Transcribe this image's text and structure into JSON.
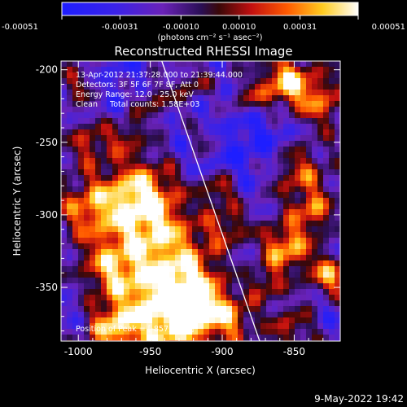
{
  "chart_data": {
    "type": "heatmap",
    "title": "Reconstructed RHESSI Image",
    "xlabel": "Heliocentric X (arcsec)",
    "ylabel": "Heliocentric Y (arcsec)",
    "xlim": [
      -1012,
      -818
    ],
    "ylim": [
      -387,
      -194
    ],
    "x_ticks": [
      -1000,
      -950,
      -900,
      -850
    ],
    "y_ticks": [
      -200,
      -250,
      -300,
      -350
    ],
    "colorbar": {
      "colormap": "blue-purple-red-yellow-white",
      "range": [
        -0.00051,
        0.00051
      ],
      "ticks": [
        "-0.00051",
        "-0.00031",
        "-0.00010",
        "0.00010",
        "0.00031",
        "0.00051"
      ],
      "label": "(photons cm⁻² s⁻¹ asec⁻²)"
    },
    "annotations": [
      "13-Apr-2012 21:37:28.000 to 21:39:44.000",
      "Detectors: 3F 5F 6F 7F 8F, Att 0",
      "Energy Range: 12.0 - 25.0 keV",
      "Clean     Total counts: 1.58E+03"
    ],
    "peak_label": "Position of Peak = [-857, -209]",
    "limb_line": {
      "points": [
        [
          -942,
          -194
        ],
        [
          -874,
          -387
        ]
      ]
    },
    "hot_regions": [
      {
        "x": -941,
        "y": -320,
        "intensity": 0.85,
        "radius": 30
      },
      {
        "x": -938,
        "y": -372,
        "intensity": 0.95,
        "radius": 22
      },
      {
        "x": -958,
        "y": -287,
        "intensity": 0.8,
        "radius": 18
      },
      {
        "x": -916,
        "y": -358,
        "intensity": 0.7,
        "radius": 16
      },
      {
        "x": -994,
        "y": -295,
        "intensity": 0.6,
        "radius": 14
      },
      {
        "x": -992,
        "y": -250,
        "intensity": 0.55,
        "radius": 10
      },
      {
        "x": -978,
        "y": -338,
        "intensity": 0.55,
        "radius": 14
      },
      {
        "x": -857,
        "y": -209,
        "intensity": 1.0,
        "radius": 12
      },
      {
        "x": -833,
        "y": -222,
        "intensity": 0.7,
        "radius": 14
      },
      {
        "x": -847,
        "y": -270,
        "intensity": 0.7,
        "radius": 14
      },
      {
        "x": -837,
        "y": -298,
        "intensity": 0.65,
        "radius": 10
      },
      {
        "x": -856,
        "y": -323,
        "intensity": 0.9,
        "radius": 12
      },
      {
        "x": -826,
        "y": -343,
        "intensity": 0.85,
        "radius": 10
      },
      {
        "x": -851,
        "y": -377,
        "intensity": 0.55,
        "radius": 12
      },
      {
        "x": -893,
        "y": -372,
        "intensity": 0.55,
        "radius": 10
      },
      {
        "x": -903,
        "y": -283,
        "intensity": 0.6,
        "radius": 9
      },
      {
        "x": -911,
        "y": -247,
        "intensity": 0.45,
        "radius": 8
      },
      {
        "x": -882,
        "y": -220,
        "intensity": 0.5,
        "radius": 8
      },
      {
        "x": -948,
        "y": -222,
        "intensity": 0.5,
        "radius": 10
      },
      {
        "x": -921,
        "y": -211,
        "intensity": 0.45,
        "radius": 8
      },
      {
        "x": -1000,
        "y": -211,
        "intensity": 0.45,
        "radius": 9
      },
      {
        "x": -966,
        "y": -245,
        "intensity": 0.5,
        "radius": 8
      },
      {
        "x": -977,
        "y": -378,
        "intensity": 0.75,
        "radius": 12
      },
      {
        "x": -895,
        "y": -309,
        "intensity": 0.45,
        "radius": 9
      },
      {
        "x": -870,
        "y": -348,
        "intensity": 0.55,
        "radius": 8
      }
    ],
    "cold_regions": [
      {
        "x": -905,
        "y": -260,
        "intensity": 0.9,
        "radius": 26
      },
      {
        "x": -862,
        "y": -243,
        "intensity": 0.8,
        "radius": 22
      },
      {
        "x": -968,
        "y": -207,
        "intensity": 0.7,
        "radius": 20
      },
      {
        "x": -832,
        "y": -365,
        "intensity": 0.55,
        "radius": 16
      },
      {
        "x": -893,
        "y": -336,
        "intensity": 0.6,
        "radius": 18
      },
      {
        "x": -1003,
        "y": -362,
        "intensity": 0.5,
        "radius": 14
      },
      {
        "x": -922,
        "y": -296,
        "intensity": 0.55,
        "radius": 14
      }
    ]
  },
  "footer": {
    "timestamp": "9-May-2022 19:42"
  }
}
